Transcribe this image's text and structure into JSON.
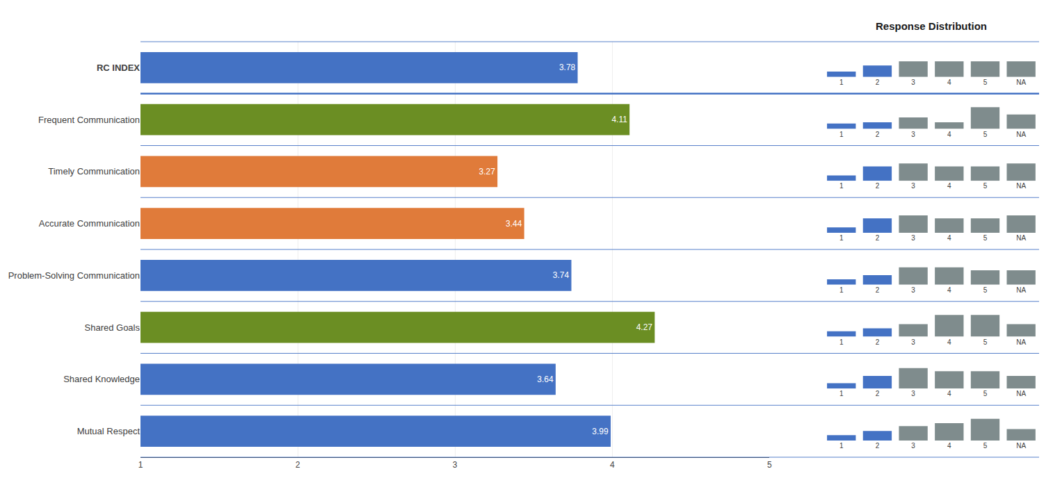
{
  "chart_data": [
    {
      "type": "bar",
      "orientation": "horizontal",
      "categories": [
        "RC INDEX",
        "Frequent Communication",
        "Timely Communication",
        "Accurate Communication",
        "Problem-Solving Communication",
        "Shared Goals",
        "Shared Knowledge",
        "Mutual Respect"
      ],
      "values": [
        3.78,
        4.11,
        3.27,
        3.44,
        3.74,
        4.27,
        3.64,
        3.99
      ],
      "colors": [
        "#4472C4",
        "#6B8E23",
        "#E07B3A",
        "#E07B3A",
        "#4472C4",
        "#6B8E23",
        "#4472C4",
        "#4472C4"
      ],
      "xlim": [
        1,
        5
      ],
      "xticks": [
        1,
        2,
        3,
        4,
        5
      ],
      "grid": true,
      "data_labels": true
    },
    {
      "type": "bar",
      "title": "Response Distribution",
      "categories": [
        "1",
        "2",
        "3",
        "4",
        "5",
        "NA"
      ],
      "colors": [
        "#4472C4",
        "#4472C4",
        "#7F8C8D",
        "#7F8C8D",
        "#7F8C8D",
        "#7F8C8D"
      ],
      "series": [
        {
          "name": "RC INDEX",
          "values": [
            0.18,
            0.38,
            0.52,
            0.52,
            0.52,
            0.52
          ]
        },
        {
          "name": "Frequent Communication",
          "values": [
            0.18,
            0.22,
            0.38,
            0.22,
            0.72,
            0.48
          ]
        },
        {
          "name": "Timely Communication",
          "values": [
            0.18,
            0.48,
            0.58,
            0.48,
            0.48,
            0.58
          ]
        },
        {
          "name": "Accurate Communication",
          "values": [
            0.18,
            0.48,
            0.58,
            0.48,
            0.48,
            0.58
          ]
        },
        {
          "name": "Problem-Solving Communication",
          "values": [
            0.18,
            0.32,
            0.58,
            0.58,
            0.48,
            0.48
          ]
        },
        {
          "name": "Shared Goals",
          "values": [
            0.18,
            0.28,
            0.42,
            0.72,
            0.72,
            0.42
          ]
        },
        {
          "name": "Shared Knowledge",
          "values": [
            0.18,
            0.42,
            0.68,
            0.58,
            0.58,
            0.42
          ]
        },
        {
          "name": "Mutual Respect",
          "values": [
            0.18,
            0.32,
            0.48,
            0.58,
            0.72,
            0.38
          ]
        }
      ],
      "ylim": [
        0,
        1
      ],
      "tick_labels": "x"
    }
  ]
}
